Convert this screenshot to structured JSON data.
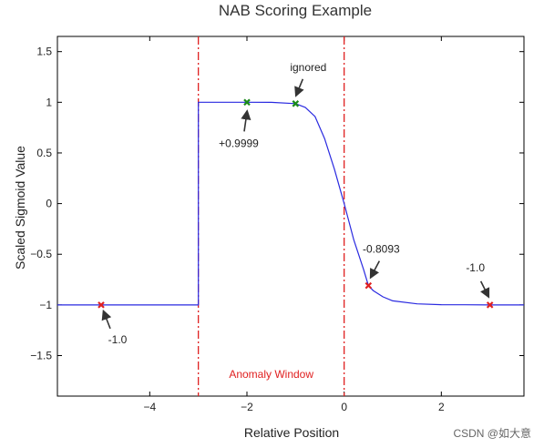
{
  "chart_data": {
    "type": "line",
    "title": "NAB Scoring Example",
    "xlabel": "Relative Position",
    "ylabel": "Scaled Sigmoid Value",
    "xlim": [
      -5.9,
      3.7
    ],
    "ylim": [
      -1.9,
      1.65
    ],
    "xticks": [
      -4,
      -2,
      0,
      2
    ],
    "xtick_labels": [
      "−4",
      "−2",
      "0",
      "2"
    ],
    "yticks": [
      1.5,
      1,
      0.5,
      0,
      -0.5,
      -1,
      -1.5
    ],
    "ytick_labels": [
      "1.5",
      "1",
      "0.5",
      "0",
      "−0.5",
      "−1",
      "−1.5"
    ],
    "grid": false,
    "series": [
      {
        "color": "#2a2ae0",
        "x": [
          -5.9,
          -3.0,
          -3.0,
          -2.5,
          -2.0,
          -1.5,
          -1.0,
          -0.8,
          -0.6,
          -0.4,
          -0.2,
          0.0,
          0.2,
          0.4,
          0.5,
          0.6,
          0.8,
          1.0,
          1.5,
          2.0,
          2.5,
          3.0,
          3.7
        ],
        "y": [
          -1.0,
          -1.0,
          1.0,
          1.0,
          0.9999,
          0.999,
          0.9866,
          0.95,
          0.86,
          0.64,
          0.34,
          0.0,
          -0.36,
          -0.65,
          -0.8093,
          -0.86,
          -0.92,
          -0.96,
          -0.99,
          -0.998,
          -0.999,
          -1.0,
          -1.0
        ]
      }
    ],
    "vlines": [
      {
        "x": -3.0,
        "color": "#e02020",
        "style": "dash-dot"
      },
      {
        "x": 0.0,
        "color": "#e02020",
        "style": "dash-dot"
      }
    ],
    "markers": [
      {
        "x": -5.0,
        "y": -1.0,
        "color": "#e02020",
        "label": "-1.0"
      },
      {
        "x": -2.0,
        "y": 0.9999,
        "color": "#1a8a1a",
        "label": "+0.9999"
      },
      {
        "x": -1.0,
        "y": 0.9866,
        "color": "#1a8a1a",
        "label": "ignored"
      },
      {
        "x": 0.5,
        "y": -0.8093,
        "color": "#e02020",
        "label": "-0.8093"
      },
      {
        "x": 3.0,
        "y": -1.0,
        "color": "#e02020",
        "label": "-1.0"
      }
    ],
    "annotations": [
      {
        "text": "Anomaly Window",
        "color": "#e02020"
      }
    ]
  },
  "watermark": "CSDN @如大意"
}
